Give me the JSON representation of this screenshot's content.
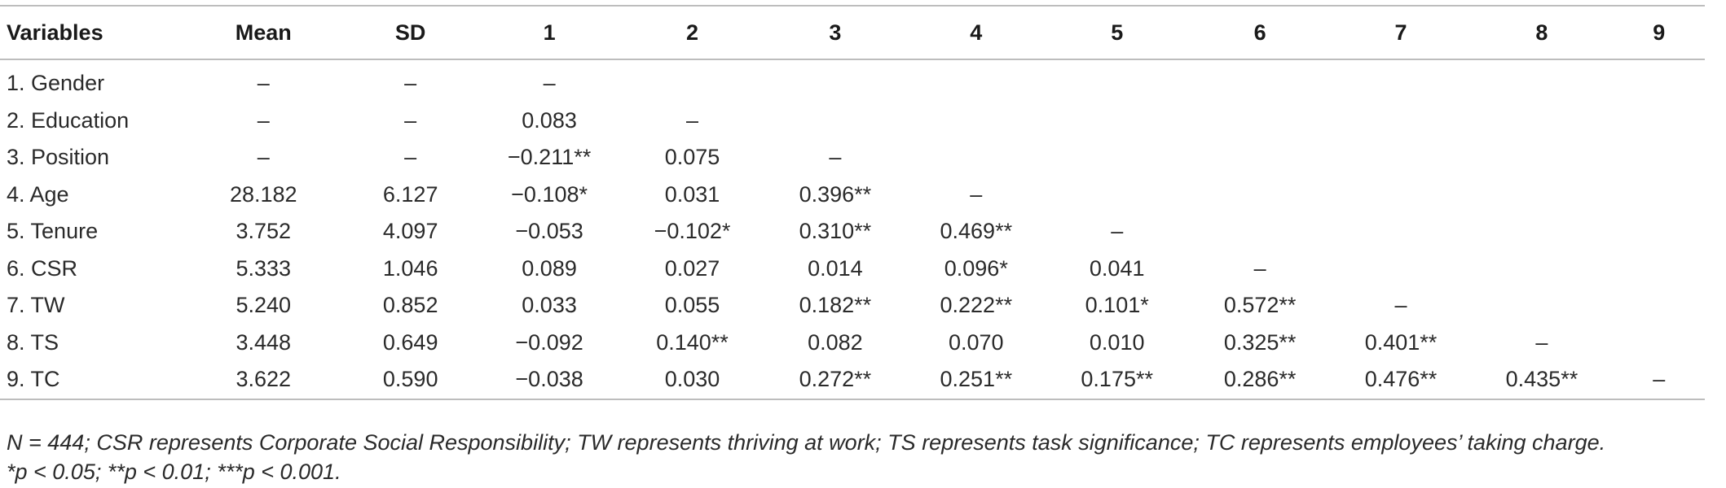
{
  "table": {
    "headers": [
      "Variables",
      "Mean",
      "SD",
      "1",
      "2",
      "3",
      "4",
      "5",
      "6",
      "7",
      "8",
      "9"
    ],
    "rows": [
      [
        "1. Gender",
        "–",
        "–",
        "–",
        "",
        "",
        "",
        "",
        "",
        "",
        "",
        ""
      ],
      [
        "2. Education",
        "–",
        "–",
        "0.083",
        "–",
        "",
        "",
        "",
        "",
        "",
        "",
        ""
      ],
      [
        "3. Position",
        "–",
        "–",
        "−0.211**",
        "0.075",
        "–",
        "",
        "",
        "",
        "",
        "",
        ""
      ],
      [
        "4. Age",
        "28.182",
        "6.127",
        "−0.108*",
        "0.031",
        "0.396**",
        "–",
        "",
        "",
        "",
        "",
        ""
      ],
      [
        "5. Tenure",
        "3.752",
        "4.097",
        "−0.053",
        "−0.102*",
        "0.310**",
        "0.469**",
        "–",
        "",
        "",
        "",
        ""
      ],
      [
        "6. CSR",
        "5.333",
        "1.046",
        "0.089",
        "0.027",
        "0.014",
        "0.096*",
        "0.041",
        "–",
        "",
        "",
        ""
      ],
      [
        "7. TW",
        "5.240",
        "0.852",
        "0.033",
        "0.055",
        "0.182**",
        "0.222**",
        "0.101*",
        "0.572**",
        "–",
        "",
        ""
      ],
      [
        "8. TS",
        "3.448",
        "0.649",
        "−0.092",
        "0.140**",
        "0.082",
        "0.070",
        "0.010",
        "0.325**",
        "0.401**",
        "–",
        ""
      ],
      [
        "9. TC",
        "3.622",
        "0.590",
        "−0.038",
        "0.030",
        "0.272**",
        "0.251**",
        "0.175**",
        "0.286**",
        "0.476**",
        "0.435**",
        "–"
      ]
    ]
  },
  "notes": {
    "line1": "N = 444; CSR represents Corporate Social Responsibility; TW represents thriving at work; TS represents task significance; TC represents employees’ taking charge.",
    "line2": "*p < 0.05; **p < 0.01; ***p < 0.001."
  }
}
